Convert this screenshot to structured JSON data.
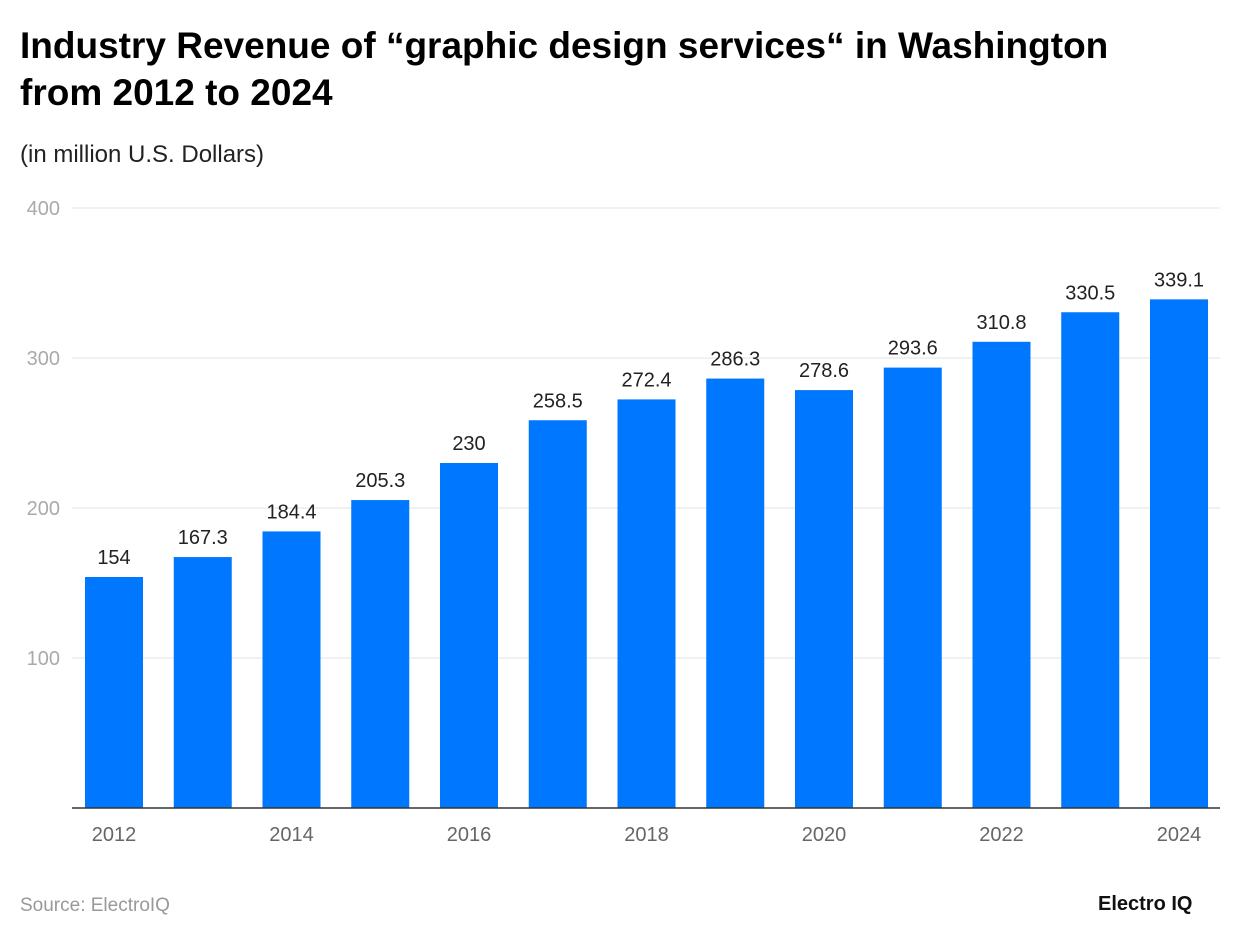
{
  "title": "Industry Revenue of “graphic design services“ in Washington from 2012 to 2024",
  "subtitle": "(in million U.S. Dollars)",
  "source": "Source: ElectroIQ",
  "logo": "Electro IQ",
  "chart_data": {
    "type": "bar",
    "categories": [
      "2012",
      "2013",
      "2014",
      "2015",
      "2016",
      "2017",
      "2018",
      "2019",
      "2020",
      "2021",
      "2022",
      "2023",
      "2024"
    ],
    "x_tick_labels": [
      "2012",
      "2014",
      "2016",
      "2018",
      "2020",
      "2022",
      "2024"
    ],
    "values": [
      154,
      167.3,
      184.4,
      205.3,
      230,
      258.5,
      272.4,
      286.3,
      278.6,
      293.6,
      310.8,
      330.5,
      339.1
    ],
    "data_labels": [
      "154",
      "167.3",
      "184.4",
      "205.3",
      "230",
      "258.5",
      "272.4",
      "286.3",
      "278.6",
      "293.6",
      "310.8",
      "330.5",
      "339.1"
    ],
    "ylim": [
      0,
      400
    ],
    "y_ticks": [
      "100",
      "200",
      "300",
      "400"
    ],
    "grid": true,
    "bar_color": "#0077ff"
  }
}
